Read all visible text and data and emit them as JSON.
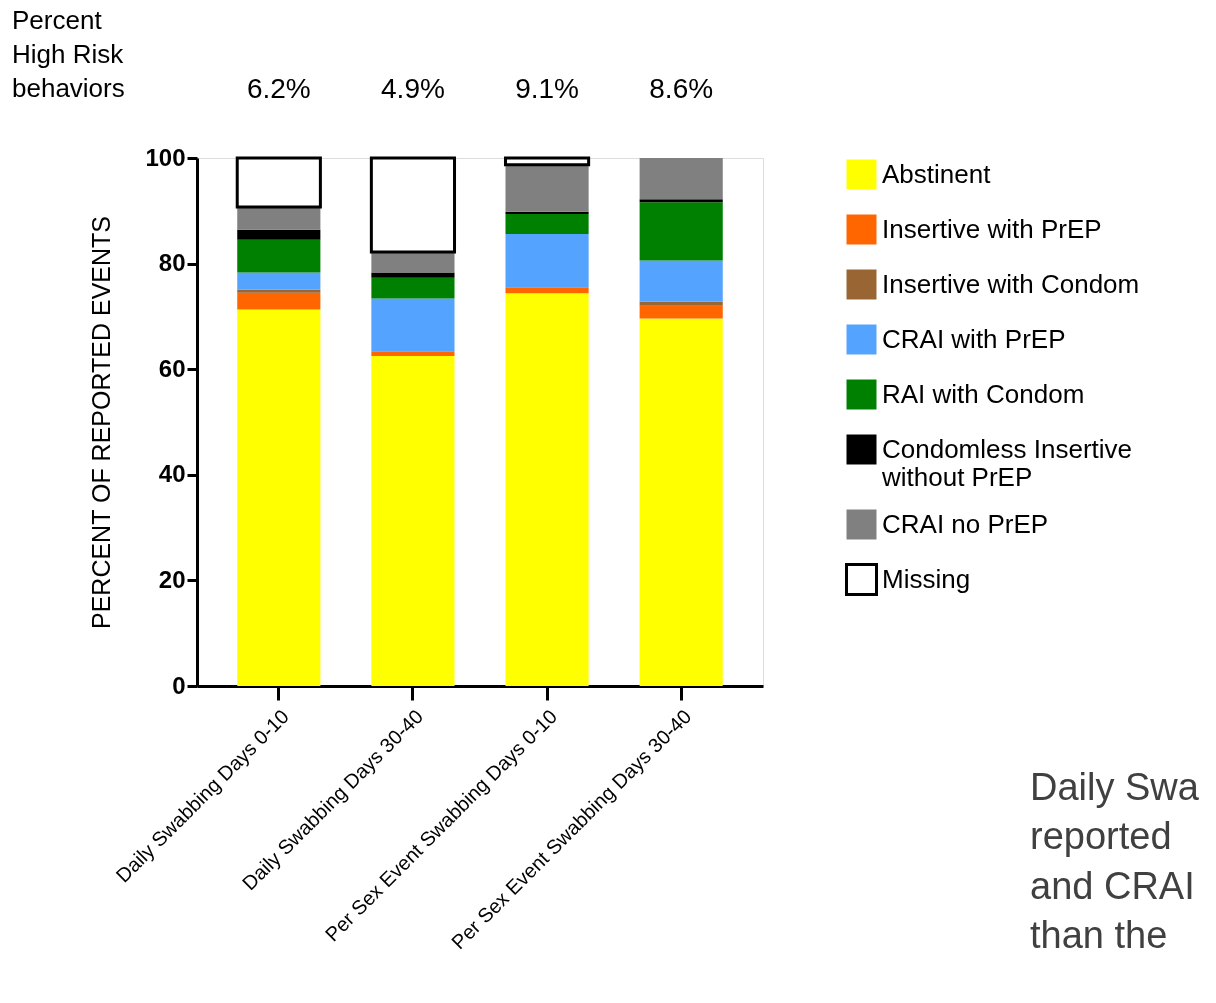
{
  "chart_data": {
    "type": "bar",
    "stacked": true,
    "ylabel": "PERCENT OF REPORTED EVENTS",
    "categories": [
      "Daily Swabbing Days 0-10",
      "Daily Swabbing Days 30-40",
      "Per Sex Event Swabbing Days 0-10",
      "Per Sex Event Swabbing Days 30-40"
    ],
    "series": [
      {
        "name": "Abstinent",
        "color": "#ffff00",
        "values": [
          71.3,
          62.5,
          74.4,
          69.6
        ]
      },
      {
        "name": "Insertive with PrEP",
        "color": "#ff6600",
        "values": [
          3.2,
          0.9,
          1.1,
          2.4
        ]
      },
      {
        "name": "Insertive with Condom",
        "color": "#996633",
        "values": [
          0.6,
          0,
          0,
          0.8
        ]
      },
      {
        "name": "CRAI with PrEP",
        "color": "#54a3ff",
        "values": [
          3.2,
          10.0,
          10.1,
          7.8
        ]
      },
      {
        "name": "RAI with Condom",
        "color": "#008000",
        "values": [
          6.2,
          3.9,
          3.8,
          11.0
        ]
      },
      {
        "name": "Condomless Insertive without PrEP",
        "color": "#000000",
        "values": [
          1.9,
          1.0,
          0.4,
          0.6
        ]
      },
      {
        "name": "CRAI no PrEP",
        "color": "#808080",
        "values": [
          4.3,
          3.9,
          8.9,
          7.8
        ]
      },
      {
        "name": "Missing",
        "color": "#ffffff",
        "values": [
          9.3,
          17.8,
          1.3,
          0
        ]
      }
    ],
    "ylim": [
      0,
      100
    ],
    "yticks": [
      0,
      20,
      40,
      60,
      80,
      100
    ],
    "grid": false,
    "legend": "right",
    "annotations": [
      "Percent\nHigh Risk\nbehaviors",
      "6.2%",
      "4.9%",
      "9.1%",
      "8.6%",
      "Daily Swa\nreported\nand CRAI\nthan the"
    ]
  }
}
